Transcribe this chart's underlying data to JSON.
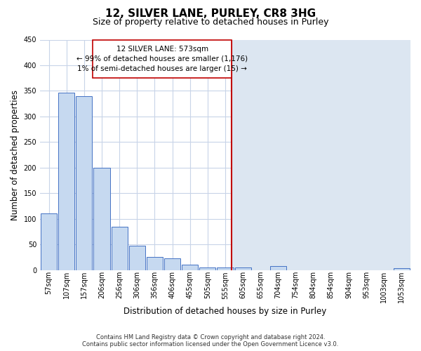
{
  "title": "12, SILVER LANE, PURLEY, CR8 3HG",
  "subtitle": "Size of property relative to detached houses in Purley",
  "xlabel": "Distribution of detached houses by size in Purley",
  "ylabel": "Number of detached properties",
  "bar_labels": [
    "57sqm",
    "107sqm",
    "157sqm",
    "206sqm",
    "256sqm",
    "306sqm",
    "356sqm",
    "406sqm",
    "455sqm",
    "505sqm",
    "555sqm",
    "605sqm",
    "655sqm",
    "704sqm",
    "754sqm",
    "804sqm",
    "854sqm",
    "904sqm",
    "953sqm",
    "1003sqm",
    "1053sqm"
  ],
  "bar_values": [
    110,
    347,
    340,
    200,
    85,
    47,
    25,
    23,
    11,
    5,
    5,
    5,
    0,
    8,
    0,
    0,
    0,
    0,
    0,
    0,
    3
  ],
  "bar_color": "#c6d9f0",
  "bar_edge_color": "#4472c4",
  "property_line_color": "#c00000",
  "property_line_label": "12 SILVER LANE: 573sqm",
  "annotation_line1": "← 99% of detached houses are smaller (1,176)",
  "annotation_line2": "1% of semi-detached houses are larger (15) →",
  "annotation_box_color": "#ffffff",
  "annotation_box_edge": "#c00000",
  "right_bg_color": "#dce6f1",
  "ylim": [
    0,
    450
  ],
  "footer_line1": "Contains HM Land Registry data © Crown copyright and database right 2024.",
  "footer_line2": "Contains public sector information licensed under the Open Government Licence v3.0.",
  "bg_color": "#ffffff",
  "grid_color": "#c8d4e8",
  "title_fontsize": 11,
  "subtitle_fontsize": 9,
  "axis_label_fontsize": 8.5,
  "tick_fontsize": 7,
  "annotation_fontsize": 7.5,
  "footer_fontsize": 6
}
